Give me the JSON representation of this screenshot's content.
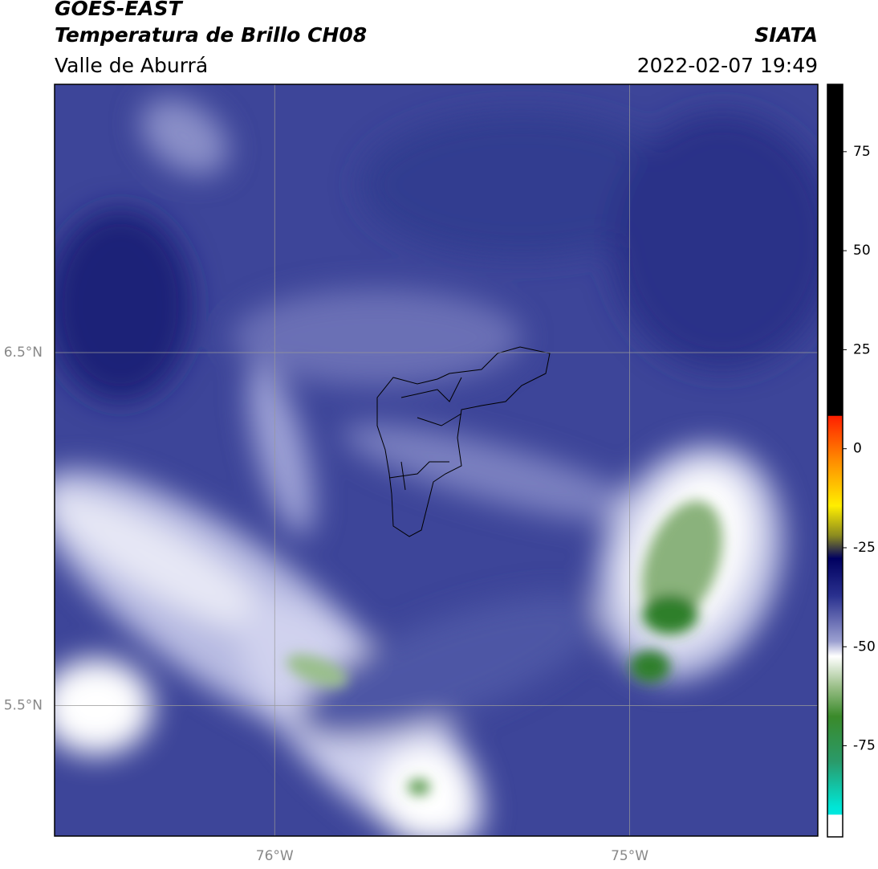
{
  "header": {
    "title": "GOES-EAST",
    "subtitle": "Temperatura de Brillo CH08",
    "region": "Valle de Aburrá",
    "source": "SIATA",
    "datetime": "2022-02-07 19:49"
  },
  "map": {
    "xlim": [
      -76.62,
      -74.47
    ],
    "ylim": [
      5.13,
      7.26
    ],
    "xticks": [
      {
        "value": -76,
        "label": "76°W"
      },
      {
        "value": -75,
        "label": "75°W"
      }
    ],
    "yticks": [
      {
        "value": 5.5,
        "label": "5.5°N"
      },
      {
        "value": 6.5,
        "label": "6.5°N"
      }
    ],
    "grid": true
  },
  "colorbar": {
    "lim": [
      -98,
      92
    ],
    "ticks": [
      -75,
      -50,
      -25,
      0,
      25,
      50,
      75
    ]
  }
}
